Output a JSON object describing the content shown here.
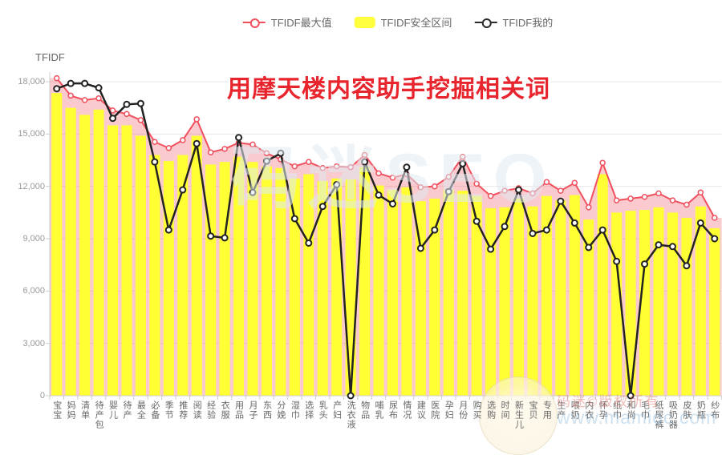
{
  "page": {
    "title_overlay": "用摩天楼内容助手挖掘相关词",
    "background": "#ffffff"
  },
  "legend": {
    "position": "top",
    "items": [
      {
        "label": "TFIDF最大值",
        "type": "line-marker",
        "color": "#f0505e"
      },
      {
        "label": "TFIDF安全区间",
        "type": "block",
        "color": "#ffff3d"
      },
      {
        "label": "TFIDF我的",
        "type": "line-marker",
        "color": "#2b2b2b"
      }
    ]
  },
  "y_axis": {
    "title": "TFIDF",
    "tick_labels": [
      "0",
      "3,000",
      "6,000",
      "9,000",
      "12,000",
      "15,000",
      "18,000"
    ],
    "tick_values": [
      0,
      3000,
      6000,
      9000,
      12000,
      15000,
      18000
    ]
  },
  "chart_data": {
    "type": "bar",
    "subtype": "composed-bar-plus-lines",
    "title": "用摩天楼内容助手挖掘相关词",
    "xlabel": "",
    "ylabel": "TFIDF",
    "ylim": [
      0,
      18600
    ],
    "grid": true,
    "legend_position": "top",
    "categories": [
      "宝宝",
      "妈妈",
      "清单",
      "待产包",
      "婴儿",
      "待产",
      "最全",
      "必备",
      "季节",
      "推荐",
      "阅读",
      "经验",
      "衣服",
      "用品",
      "月子",
      "东西",
      "分娩",
      "湿巾",
      "选择",
      "乳头",
      "产妇",
      "洗衣液",
      "物品",
      "哺乳",
      "尿布",
      "情况",
      "建议",
      "医院",
      "孕妇",
      "月份",
      "购买",
      "选购",
      "时间",
      "新生儿",
      "宝贝",
      "专用",
      "生产",
      "喂奶",
      "内衣",
      "怀孕",
      "纸巾",
      "和尚",
      "毛巾",
      "纸尿裤",
      "吸奶器",
      "皮肤",
      "奶瓶",
      "纱布"
    ],
    "series": [
      {
        "name": "TFIDF最大值",
        "type": "line",
        "color": "#f0505e",
        "area_fill": "rgba(240,80,94,0.30)",
        "values": [
          18200,
          17200,
          16950,
          17050,
          16350,
          16150,
          15800,
          14550,
          14200,
          14650,
          15850,
          13950,
          14150,
          14500,
          14400,
          13900,
          13550,
          13150,
          13400,
          13050,
          13150,
          13100,
          13800,
          12750,
          12500,
          12700,
          11950,
          12000,
          12550,
          13700,
          12150,
          11450,
          11750,
          11900,
          11600,
          12250,
          11750,
          12200,
          10800,
          13350,
          11200,
          11300,
          11400,
          11600,
          11200,
          10950,
          11650,
          10200
        ]
      },
      {
        "name": "TFIDF安全区间",
        "type": "bar",
        "color": "#ffff33",
        "values": [
          17350,
          16500,
          16100,
          16400,
          15500,
          15500,
          14900,
          13800,
          13450,
          13800,
          14900,
          13250,
          13400,
          13700,
          13400,
          13150,
          13050,
          12450,
          12700,
          12300,
          12450,
          12400,
          13100,
          12050,
          11800,
          11950,
          11150,
          11300,
          11800,
          11750,
          11450,
          10750,
          10800,
          11300,
          10850,
          11450,
          11200,
          11500,
          10100,
          12700,
          10500,
          10600,
          10650,
          10800,
          10500,
          10200,
          10850,
          9600
        ]
      },
      {
        "name": "TFIDF我的",
        "type": "line",
        "color": "#222222",
        "values": [
          17600,
          17900,
          17900,
          17650,
          15900,
          16700,
          16750,
          13400,
          9500,
          11800,
          14450,
          9150,
          9050,
          14800,
          11650,
          13450,
          13900,
          10150,
          8750,
          10850,
          12100,
          0,
          13400,
          11500,
          11000,
          13100,
          8450,
          9500,
          11700,
          13300,
          10000,
          8400,
          9700,
          11800,
          9300,
          9500,
          11150,
          9900,
          8500,
          9500,
          7700,
          0,
          7550,
          8650,
          8550,
          7450,
          9900,
          9000
        ]
      }
    ]
  },
  "watermarks": {
    "center": "码迷SEO",
    "copyright": "码迷©版权所有",
    "site": "www.mamioc.com"
  }
}
